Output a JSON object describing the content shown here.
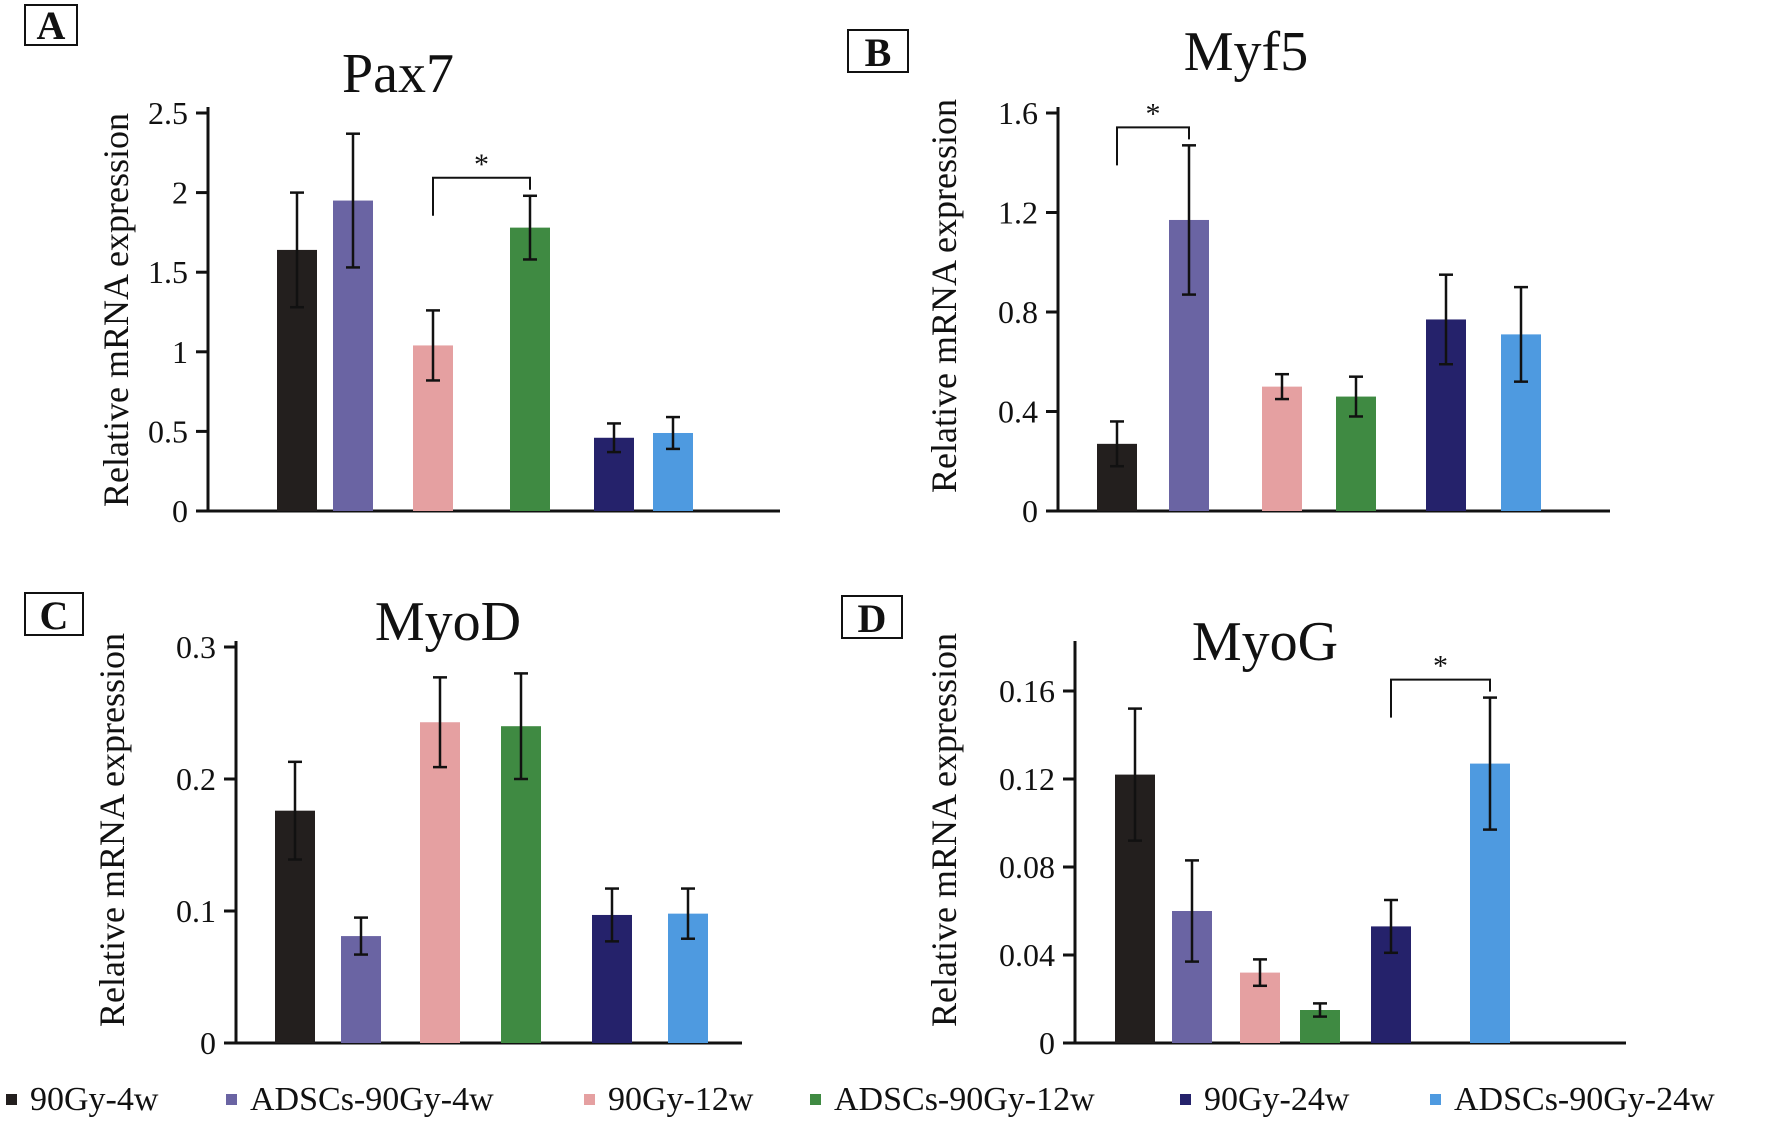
{
  "figure": {
    "legend": [
      {
        "label": "90Gy-4w",
        "color": "#231f1e"
      },
      {
        "label": "ADSCs-90Gy-4w",
        "color": "#6a64a3"
      },
      {
        "label": "90Gy-12w",
        "color": "#e5a0a1"
      },
      {
        "label": "ADSCs-90Gy-12w",
        "color": "#3f8a42"
      },
      {
        "label": "90Gy-24w",
        "color": "#25226b"
      },
      {
        "label": "ADSCs-90Gy-24w",
        "color": "#4e9ae0"
      }
    ]
  },
  "chart_data": [
    {
      "panel": "A",
      "type": "bar",
      "title": "Pax7",
      "ylabel": "Relative mRNA expression",
      "ylim": [
        0,
        2.5
      ],
      "yticks": [
        "0",
        "0.5",
        "1",
        "1.5",
        "2",
        "2.5"
      ],
      "series": [
        {
          "name": "90Gy-4w",
          "value": 1.64,
          "error": 0.36
        },
        {
          "name": "ADSCs-90Gy-4w",
          "value": 1.95,
          "error": 0.42
        },
        {
          "name": "90Gy-12w",
          "value": 1.04,
          "error": 0.22
        },
        {
          "name": "ADSCs-90Gy-12w",
          "value": 1.78,
          "error": 0.2
        },
        {
          "name": "90Gy-24w",
          "value": 0.46,
          "error": 0.09
        },
        {
          "name": "ADSCs-90Gy-24w",
          "value": 0.49,
          "error": 0.1
        }
      ],
      "significance": [
        {
          "from": 2,
          "to": 3,
          "label": "*"
        }
      ]
    },
    {
      "panel": "B",
      "type": "bar",
      "title": "Myf5",
      "ylabel": "Relative mRNA expression",
      "ylim": [
        0,
        1.6
      ],
      "yticks": [
        "0",
        "0.4",
        "0.8",
        "1.2",
        "1.6"
      ],
      "series": [
        {
          "name": "90Gy-4w",
          "value": 0.27,
          "error": 0.09
        },
        {
          "name": "ADSCs-90Gy-4w",
          "value": 1.17,
          "error": 0.3
        },
        {
          "name": "90Gy-12w",
          "value": 0.5,
          "error": 0.05
        },
        {
          "name": "ADSCs-90Gy-12w",
          "value": 0.46,
          "error": 0.08
        },
        {
          "name": "90Gy-24w",
          "value": 0.77,
          "error": 0.18
        },
        {
          "name": "ADSCs-90Gy-24w",
          "value": 0.71,
          "error": 0.19
        }
      ],
      "significance": [
        {
          "from": 0,
          "to": 1,
          "label": "*"
        }
      ]
    },
    {
      "panel": "C",
      "type": "bar",
      "title": "MyoD",
      "ylabel": "Relative mRNA expression",
      "ylim": [
        0,
        0.3
      ],
      "yticks": [
        "0",
        "0.1",
        "0.2",
        "0.3"
      ],
      "series": [
        {
          "name": "90Gy-4w",
          "value": 0.176,
          "error": 0.037
        },
        {
          "name": "ADSCs-90Gy-4w",
          "value": 0.081,
          "error": 0.014
        },
        {
          "name": "90Gy-12w",
          "value": 0.243,
          "error": 0.034
        },
        {
          "name": "ADSCs-90Gy-12w",
          "value": 0.24,
          "error": 0.04
        },
        {
          "name": "90Gy-24w",
          "value": 0.097,
          "error": 0.02
        },
        {
          "name": "ADSCs-90Gy-24w",
          "value": 0.098,
          "error": 0.019
        }
      ],
      "significance": []
    },
    {
      "panel": "D",
      "type": "bar",
      "title": "MyoG",
      "ylabel": "Relative mRNA expression",
      "ylim": [
        0,
        0.18
      ],
      "yticks": [
        "0",
        "0.04",
        "0.08",
        "0.12",
        "0.16"
      ],
      "series": [
        {
          "name": "90Gy-4w",
          "value": 0.122,
          "error": 0.03
        },
        {
          "name": "ADSCs-90Gy-4w",
          "value": 0.06,
          "error": 0.023
        },
        {
          "name": "90Gy-12w",
          "value": 0.032,
          "error": 0.006
        },
        {
          "name": "ADSCs-90Gy-12w",
          "value": 0.015,
          "error": 0.003
        },
        {
          "name": "90Gy-24w",
          "value": 0.053,
          "error": 0.012
        },
        {
          "name": "ADSCs-90Gy-24w",
          "value": 0.127,
          "error": 0.03
        }
      ],
      "significance": [
        {
          "from": 4,
          "to": 5,
          "label": "*"
        }
      ]
    }
  ]
}
